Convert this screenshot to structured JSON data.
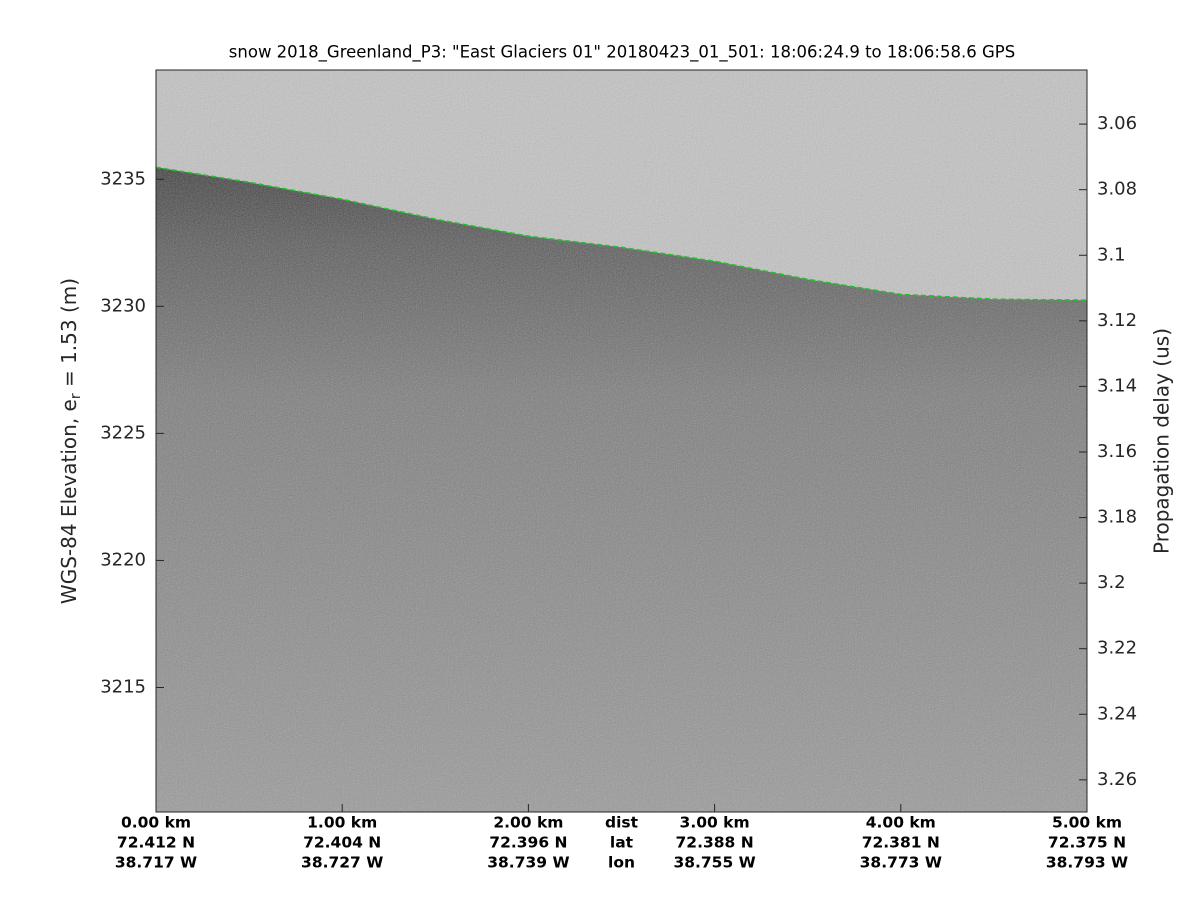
{
  "chart_data": {
    "type": "echogram",
    "title": "snow 2018_Greenland_P3: \"East Glaciers 01\"  20180423_01_501: 18:06:24.9 to 18:06:58.6 GPS",
    "ylabel": {
      "text": "WGS-84 Elevation, e",
      "sub": "r",
      "tail": " = 1.53 (m)"
    },
    "y2label": "Propagation delay (us)",
    "xlim": [
      0,
      5
    ],
    "xticks": [
      {
        "value": 0,
        "label": "0.00 km"
      },
      {
        "value": 1,
        "label": "1.00 km"
      },
      {
        "value": 2,
        "label": "2.00 km"
      },
      {
        "value": 3,
        "label": "3.00 km"
      },
      {
        "value": 4,
        "label": "4.00 km"
      },
      {
        "value": 5,
        "label": "5.00 km"
      }
    ],
    "lat_labels": [
      "72.412 N",
      "72.404 N",
      "72.396 N",
      "72.388 N",
      "72.381 N",
      "72.375 N"
    ],
    "lon_labels": [
      "38.717 W",
      "38.727 W",
      "38.739 W",
      "38.755 W",
      "38.773 W",
      "38.793 W"
    ],
    "row_labels": [
      "dist",
      "lat",
      "lon"
    ],
    "ylim": [
      3210.1,
      3239.3
    ],
    "yticks": [
      3215,
      3220,
      3225,
      3230,
      3235
    ],
    "y2lim": [
      3.2698,
      3.0435
    ],
    "y2ticks": [
      3.06,
      3.08,
      3.1,
      3.12,
      3.14,
      3.16,
      3.18,
      3.2,
      3.22,
      3.24,
      3.26
    ],
    "surface": {
      "color": "#22c02a",
      "x": [
        0,
        0.5,
        1,
        1.5,
        2,
        2.5,
        3,
        3.5,
        4,
        4.5,
        5
      ],
      "values": [
        3235.47,
        3234.88,
        3234.21,
        3233.43,
        3232.76,
        3232.32,
        3231.77,
        3231.06,
        3230.47,
        3230.28,
        3230.24
      ]
    }
  }
}
